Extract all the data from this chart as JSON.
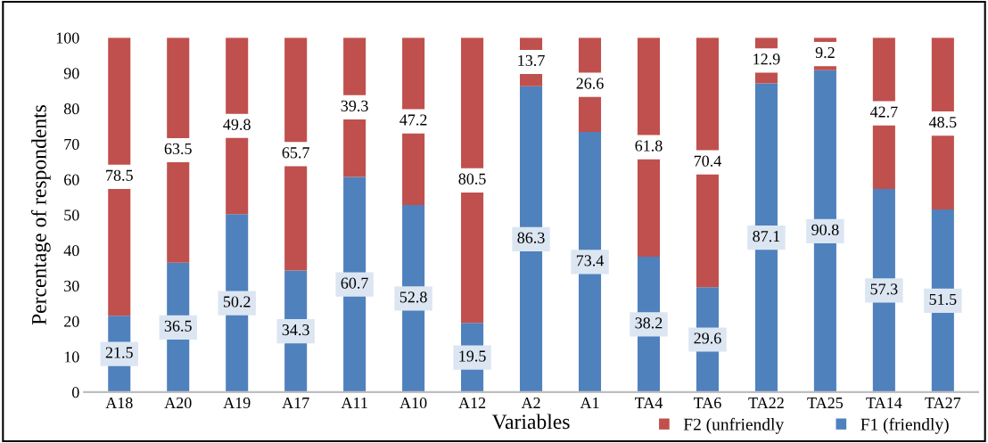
{
  "chart_data": {
    "type": "bar",
    "stacked": true,
    "xlabel": "Variables",
    "ylabel": "Percentage of respondents",
    "categories": [
      "A18",
      "A20",
      "A19",
      "A17",
      "A11",
      "A10",
      "A12",
      "A2",
      "A1",
      "TA4",
      "TA6",
      "TA22",
      "TA25",
      "TA14",
      "TA27"
    ],
    "series": [
      {
        "name": "F1 (friendly)",
        "color": "#4f81bd",
        "values": [
          21.5,
          36.5,
          50.2,
          34.3,
          60.7,
          52.8,
          19.5,
          86.3,
          73.4,
          38.2,
          29.6,
          87.1,
          90.8,
          57.3,
          51.5
        ]
      },
      {
        "name": "F2 (unfriendly",
        "color": "#c0504d",
        "values": [
          78.5,
          63.5,
          49.8,
          65.7,
          39.3,
          47.2,
          80.5,
          13.7,
          26.6,
          61.8,
          70.4,
          12.9,
          9.2,
          42.7,
          48.5
        ]
      }
    ],
    "ylim": [
      0,
      100
    ],
    "yticks": [
      0,
      10,
      20,
      30,
      40,
      50,
      60,
      70,
      80,
      90,
      100
    ],
    "data_labels": true,
    "grid": false,
    "legend": "bottom right"
  }
}
